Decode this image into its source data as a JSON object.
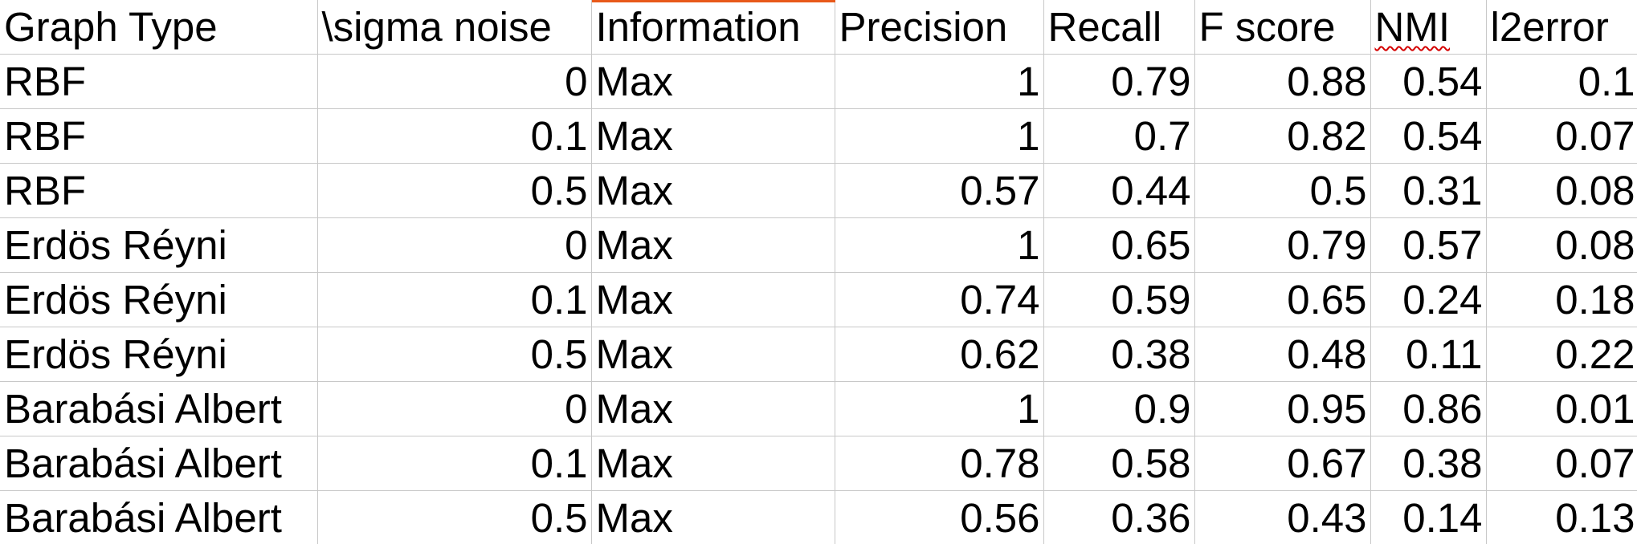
{
  "sheet": {
    "accent_color": "#e8591a",
    "gridline_color": "#c8c8c8",
    "spellcheck_color": "#d40000",
    "headers": [
      "Graph Type",
      "\\sigma noise",
      "Information",
      "Precision",
      "Recall",
      "F score",
      "NMI",
      "l2error"
    ],
    "rows": [
      [
        "RBF",
        "0",
        "Max",
        "1",
        "0.79",
        "0.88",
        "0.54",
        "0.1"
      ],
      [
        "RBF",
        "0.1",
        "Max",
        "1",
        "0.7",
        "0.82",
        "0.54",
        "0.07"
      ],
      [
        "RBF",
        "0.5",
        "Max",
        "0.57",
        "0.44",
        "0.5",
        "0.31",
        "0.08"
      ],
      [
        "Erdös Réyni",
        "0",
        "Max",
        "1",
        "0.65",
        "0.79",
        "0.57",
        "0.08"
      ],
      [
        "Erdös Réyni",
        "0.1",
        "Max",
        "0.74",
        "0.59",
        "0.65",
        "0.24",
        "0.18"
      ],
      [
        "Erdös Réyni",
        "0.5",
        "Max",
        "0.62",
        "0.38",
        "0.48",
        "0.11",
        "0.22"
      ],
      [
        "Barabási Albert",
        "0",
        "Max",
        "1",
        "0.9",
        "0.95",
        "0.86",
        "0.01"
      ],
      [
        "Barabási Albert",
        "0.1",
        "Max",
        "0.78",
        "0.58",
        "0.67",
        "0.38",
        "0.07"
      ],
      [
        "Barabási Albert",
        "0.5",
        "Max",
        "0.56",
        "0.36",
        "0.43",
        "0.14",
        "0.13"
      ]
    ]
  }
}
